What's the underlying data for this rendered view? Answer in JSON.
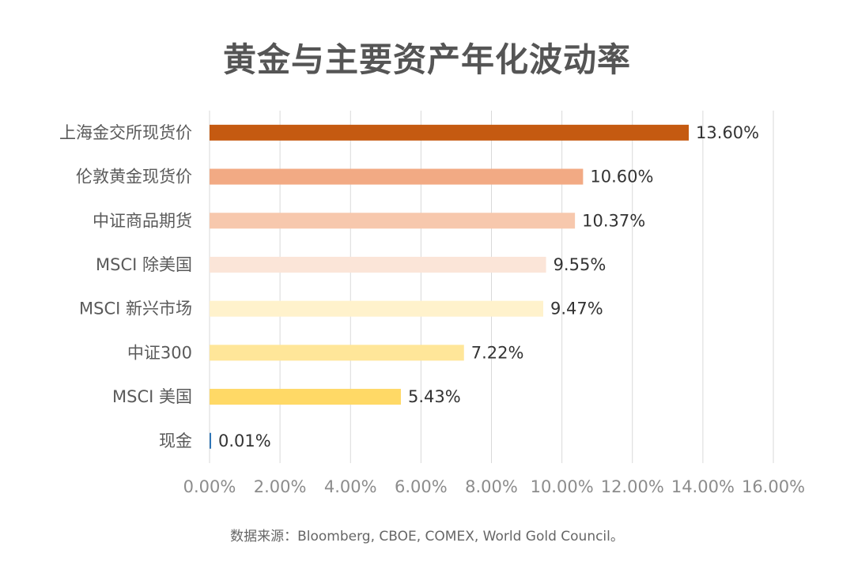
{
  "chart_data": {
    "type": "bar",
    "orientation": "horizontal",
    "title": "黄金与主要资产年化波动率",
    "categories": [
      "上海金交所现货价",
      "伦敦黄金现货价",
      "中证商品期货",
      "MSCI 除美国",
      "MSCI 新兴市场",
      "中证300",
      "MSCI 美国",
      "现金"
    ],
    "values": [
      13.6,
      10.6,
      10.37,
      9.55,
      9.47,
      7.22,
      5.43,
      0.01
    ],
    "value_labels": [
      "13.60%",
      "10.60%",
      "10.37%",
      "9.55%",
      "9.47%",
      "7.22%",
      "5.43%",
      "0.01%"
    ],
    "colors": [
      "#c55a11",
      "#f2aa84",
      "#f7c8ad",
      "#fbe5d8",
      "#fff2cc",
      "#ffe699",
      "#ffd966",
      "#2e75b6"
    ],
    "xlim": [
      0,
      16
    ],
    "x_ticks": [
      0,
      2,
      4,
      6,
      8,
      10,
      12,
      14,
      16
    ],
    "x_tick_labels": [
      "0.00%",
      "2.00%",
      "4.00%",
      "6.00%",
      "8.00%",
      "10.00%",
      "12.00%",
      "14.00%",
      "16.00%"
    ],
    "grid": true,
    "xlabel": "",
    "ylabel": ""
  },
  "source": "数据来源：Bloomberg, CBOE, COMEX, World Gold Council。"
}
